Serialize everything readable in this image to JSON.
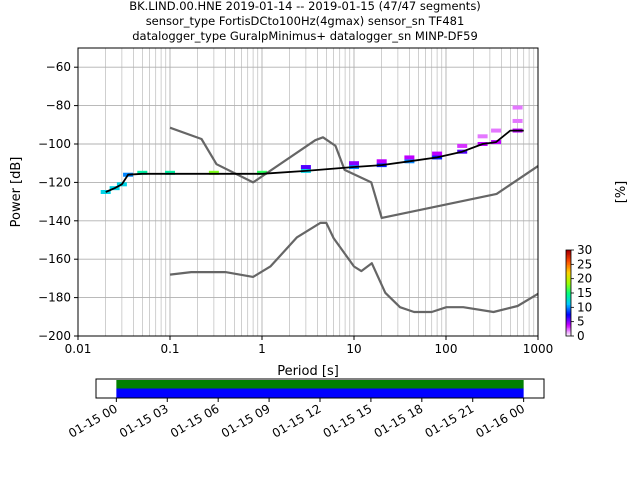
{
  "title_lines": [
    "BK.LIND.00.HNE   2019-01-14 -- 2019-01-15  (47/47 segments)",
    "sensor_type FortisDCto100Hz(4gmax) sensor_sn TF481",
    "datalogger_type GuralpMinimus+ datalogger_sn MINP-DF59"
  ],
  "chart_data": [
    {
      "type": "line",
      "xlabel": "Period [s]",
      "ylabel": "Power [dB]",
      "x_scale": "log",
      "xlim": [
        0.01,
        1000
      ],
      "ylim": [
        -200,
        -50
      ],
      "grid": true,
      "x_ticks": [
        {
          "value": 0.01,
          "label": "0.01"
        },
        {
          "value": 0.1,
          "label": "0.1"
        },
        {
          "value": 1,
          "label": "1"
        },
        {
          "value": 10,
          "label": "10"
        },
        {
          "value": 100,
          "label": "100"
        },
        {
          "value": 1000,
          "label": "1000"
        }
      ],
      "y_ticks": [
        {
          "value": -60,
          "label": "−60"
        },
        {
          "value": -80,
          "label": "−80"
        },
        {
          "value": -100,
          "label": "−100"
        },
        {
          "value": -120,
          "label": "−120"
        },
        {
          "value": -140,
          "label": "−140"
        },
        {
          "value": -160,
          "label": "−160"
        },
        {
          "value": -180,
          "label": "−180"
        },
        {
          "value": -200,
          "label": "−200"
        }
      ],
      "series": [
        {
          "role": "new-high-noise-model",
          "color": "#666666",
          "x": [
            0.1,
            0.22,
            0.32,
            0.8,
            3.8,
            4.6,
            6.3,
            7.9,
            15.4,
            20,
            354.8,
            1000
          ],
          "y": [
            -91.5,
            -97.4,
            -110.5,
            -120,
            -98,
            -96.5,
            -101,
            -113.5,
            -120,
            -138.5,
            -126,
            -111.5
          ]
        },
        {
          "role": "new-low-noise-model",
          "color": "#666666",
          "x": [
            0.1,
            0.17,
            0.4,
            0.8,
            1.24,
            2.4,
            4.3,
            5.0,
            6.0,
            10.0,
            12.0,
            15.6,
            21.9,
            31.6,
            45,
            70,
            101,
            154,
            328,
            600,
            1000
          ],
          "y": [
            -168,
            -166.7,
            -166.7,
            -169.2,
            -163.7,
            -148.6,
            -141.1,
            -141.1,
            -149.0,
            -163.8,
            -166.2,
            -162.1,
            -177.5,
            -185.0,
            -187.5,
            -187.5,
            -185.0,
            -185.0,
            -187.5,
            -184.4,
            -178
          ]
        },
        {
          "role": "mean",
          "color": "#000000",
          "x": [
            0.02,
            0.025,
            0.03,
            0.035,
            0.05,
            0.1,
            0.3,
            1,
            3,
            10,
            20,
            40,
            80,
            150,
            250,
            350,
            500,
            700
          ],
          "y": [
            -125,
            -123,
            -121,
            -116,
            -115.5,
            -115.5,
            -115.5,
            -115.5,
            -114,
            -112,
            -111,
            -109,
            -107,
            -104,
            -100,
            -99,
            -93,
            -93
          ]
        }
      ]
    },
    {
      "type": "heatmap",
      "colorbar_label": "[%]",
      "clim": [
        0,
        30
      ],
      "colorbar_ticks": [
        "0",
        "5",
        "10",
        "15",
        "20",
        "25",
        "30"
      ],
      "colormap": [
        "#ffffff",
        "#cc00ff",
        "#0000ff",
        "#00c8ff",
        "#00ff80",
        "#a0ff00",
        "#ffd000",
        "#ff5000",
        "#b00000"
      ],
      "cells": [
        {
          "x": 0.02,
          "y": -125,
          "pct": 12
        },
        {
          "x": 0.025,
          "y": -123,
          "pct": 12
        },
        {
          "x": 0.03,
          "y": -121,
          "pct": 12
        },
        {
          "x": 0.035,
          "y": -116,
          "pct": 10
        },
        {
          "x": 0.05,
          "y": -115,
          "pct": 14
        },
        {
          "x": 0.1,
          "y": -115,
          "pct": 14
        },
        {
          "x": 0.3,
          "y": -115,
          "pct": 18
        },
        {
          "x": 1,
          "y": -115,
          "pct": 16
        },
        {
          "x": 3,
          "y": -114,
          "pct": 12
        },
        {
          "x": 3,
          "y": -112,
          "pct": 6
        },
        {
          "x": 10,
          "y": -112,
          "pct": 10
        },
        {
          "x": 10,
          "y": -110,
          "pct": 5
        },
        {
          "x": 20,
          "y": -111,
          "pct": 8
        },
        {
          "x": 20,
          "y": -109,
          "pct": 4
        },
        {
          "x": 40,
          "y": -109,
          "pct": 10
        },
        {
          "x": 40,
          "y": -107,
          "pct": 4
        },
        {
          "x": 80,
          "y": -107,
          "pct": 8
        },
        {
          "x": 80,
          "y": -105,
          "pct": 4
        },
        {
          "x": 150,
          "y": -104,
          "pct": 6
        },
        {
          "x": 150,
          "y": -101,
          "pct": 3
        },
        {
          "x": 250,
          "y": -100,
          "pct": 4
        },
        {
          "x": 250,
          "y": -96,
          "pct": 2
        },
        {
          "x": 350,
          "y": -99,
          "pct": 4
        },
        {
          "x": 350,
          "y": -93,
          "pct": 2
        },
        {
          "x": 600,
          "y": -93,
          "pct": 4
        },
        {
          "x": 600,
          "y": -88,
          "pct": 2
        },
        {
          "x": 600,
          "y": -81,
          "pct": 2
        }
      ]
    },
    {
      "type": "bar",
      "role": "data-coverage",
      "x_ticks": [
        "01-15 00",
        "01-15 03",
        "01-15 06",
        "01-15 09",
        "01-15 12",
        "01-15 15",
        "01-15 18",
        "01-15 21",
        "01-16 00"
      ],
      "xlim_hours": [
        -1.2,
        25.2
      ],
      "coverage_hours": [
        0,
        24
      ],
      "colors": {
        "top": "#008000",
        "bottom": "#0000ff"
      }
    }
  ]
}
